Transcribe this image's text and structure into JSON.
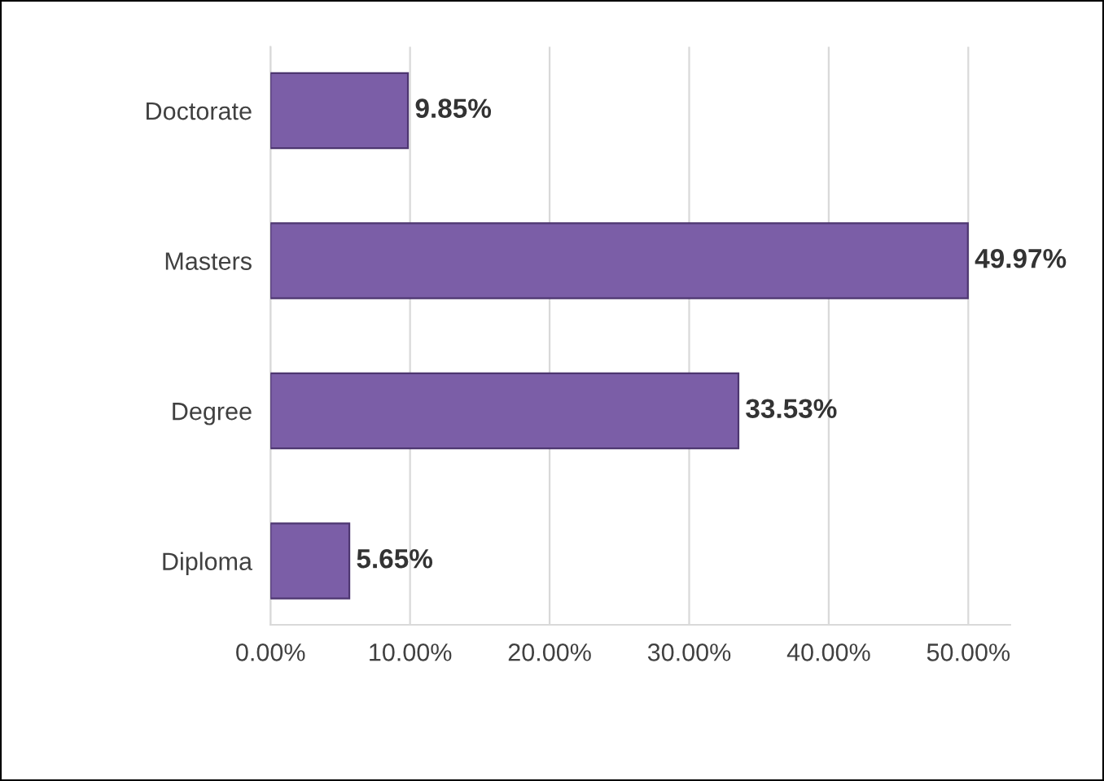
{
  "chart_data": {
    "type": "bar",
    "orientation": "horizontal",
    "categories": [
      "Doctorate",
      "Masters",
      "Degree",
      "Diploma"
    ],
    "values": [
      9.85,
      49.97,
      33.53,
      5.65
    ],
    "value_labels": [
      "9.85%",
      "49.97%",
      "33.53%",
      "5.65%"
    ],
    "color": "#7b5ea7",
    "xlim": [
      0,
      53
    ],
    "xticks": [
      {
        "value": 0,
        "label": "0.00%"
      },
      {
        "value": 10,
        "label": "10.00%"
      },
      {
        "value": 20,
        "label": "20.00%"
      },
      {
        "value": 30,
        "label": "30.00%"
      },
      {
        "value": 40,
        "label": "40.00%"
      },
      {
        "value": 50,
        "label": "50.00%"
      }
    ],
    "grid": "x",
    "legend": false
  }
}
